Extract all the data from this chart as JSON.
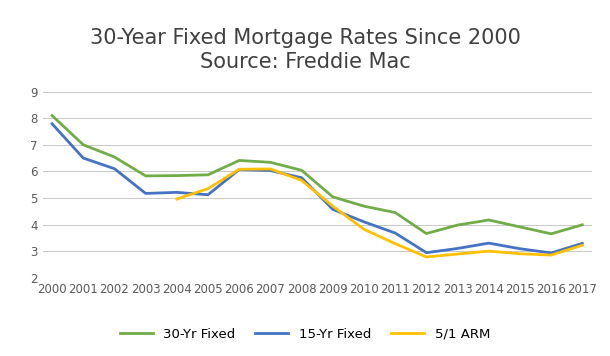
{
  "title": "30-Year Fixed Mortgage Rates Since 2000\nSource: Freddie Mac",
  "years": [
    2000,
    2001,
    2002,
    2003,
    2004,
    2005,
    2006,
    2007,
    2008,
    2009,
    2010,
    2011,
    2012,
    2013,
    2014,
    2015,
    2016,
    2017
  ],
  "fixed30": [
    8.1,
    7.0,
    6.54,
    5.83,
    5.84,
    5.87,
    6.41,
    6.34,
    6.04,
    5.04,
    4.69,
    4.45,
    3.66,
    3.98,
    4.17,
    3.91,
    3.65,
    3.99
  ],
  "fixed15": [
    7.79,
    6.5,
    6.1,
    5.17,
    5.21,
    5.12,
    6.07,
    6.03,
    5.76,
    4.57,
    4.1,
    3.68,
    2.94,
    3.1,
    3.3,
    3.09,
    2.93,
    3.29
  ],
  "arm51": [
    null,
    null,
    null,
    null,
    4.96,
    5.35,
    6.08,
    6.09,
    5.66,
    4.69,
    3.82,
    3.28,
    2.78,
    2.89,
    3.0,
    2.9,
    2.85,
    3.22
  ],
  "color_30yr": "#70AD47",
  "color_15yr": "#4472C4",
  "color_arm": "#FFC000",
  "ylim": [
    2,
    9.5
  ],
  "yticks": [
    2,
    3,
    4,
    5,
    6,
    7,
    8,
    9
  ],
  "background_color": "#FFFFFF",
  "legend_labels": [
    "30-Yr Fixed",
    "15-Yr Fixed",
    "5/1 ARM"
  ],
  "title_fontsize": 15,
  "tick_fontsize": 8.5,
  "legend_fontsize": 9.5
}
